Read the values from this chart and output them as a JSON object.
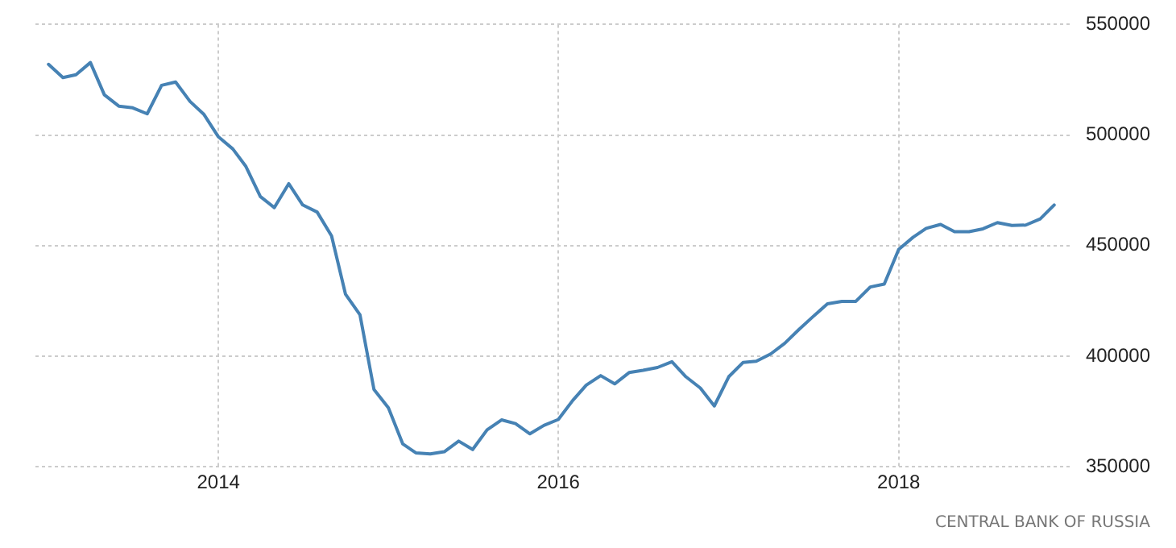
{
  "chart_data": {
    "type": "line",
    "x": [
      "2013-01",
      "2013-02",
      "2013-03",
      "2013-04",
      "2013-05",
      "2013-06",
      "2013-07",
      "2013-08",
      "2013-09",
      "2013-10",
      "2013-11",
      "2013-12",
      "2014-01",
      "2014-02",
      "2014-03",
      "2014-04",
      "2014-05",
      "2014-06",
      "2014-07",
      "2014-08",
      "2014-09",
      "2014-10",
      "2014-11",
      "2014-12",
      "2015-01",
      "2015-02",
      "2015-03",
      "2015-04",
      "2015-05",
      "2015-06",
      "2015-07",
      "2015-08",
      "2015-09",
      "2015-10",
      "2015-11",
      "2015-12",
      "2016-01",
      "2016-02",
      "2016-03",
      "2016-04",
      "2016-05",
      "2016-06",
      "2016-07",
      "2016-08",
      "2016-09",
      "2016-10",
      "2016-11",
      "2016-12",
      "2017-01",
      "2017-02",
      "2017-03",
      "2017-04",
      "2017-05",
      "2017-06",
      "2017-07",
      "2017-08",
      "2017-09",
      "2017-10",
      "2017-11",
      "2017-12",
      "2018-01",
      "2018-02",
      "2018-03",
      "2018-04",
      "2018-05",
      "2018-06",
      "2018-07",
      "2018-08",
      "2018-09",
      "2018-10",
      "2018-11",
      "2018-12"
    ],
    "series": [
      {
        "color": "#4682b4",
        "values": [
          532000,
          526000,
          527300,
          532800,
          518200,
          513100,
          512300,
          509600,
          522500,
          524000,
          515200,
          509300,
          499200,
          493700,
          485800,
          472200,
          467200,
          478000,
          468400,
          465200,
          454400,
          428000,
          418700,
          385000,
          376700,
          360300,
          356300,
          355800,
          356800,
          361600,
          357800,
          366700,
          371200,
          369500,
          364900,
          368700,
          371400,
          380000,
          386900,
          391200,
          387500,
          392600,
          393600,
          394900,
          397500,
          390700,
          385600,
          377500,
          390700,
          397200,
          397700,
          401000,
          405800,
          412100,
          417900,
          423700,
          424800,
          424800,
          431300,
          432600,
          448300,
          453800,
          457800,
          459600,
          456300,
          456300,
          457600,
          460400,
          459100,
          459300,
          462100,
          468400
        ]
      }
    ],
    "xlim": [
      "2012-12-04",
      "2019-01-10"
    ],
    "xticks": [
      "2014",
      "2016",
      "2018"
    ],
    "ylim": [
      350000,
      550000
    ],
    "yticks": [
      350000,
      400000,
      450000,
      500000,
      550000
    ],
    "grid": true,
    "legend": false,
    "marker": "none",
    "line_style": "solid",
    "annotations": [
      "CENTRAL BANK OF RUSSIA"
    ]
  }
}
